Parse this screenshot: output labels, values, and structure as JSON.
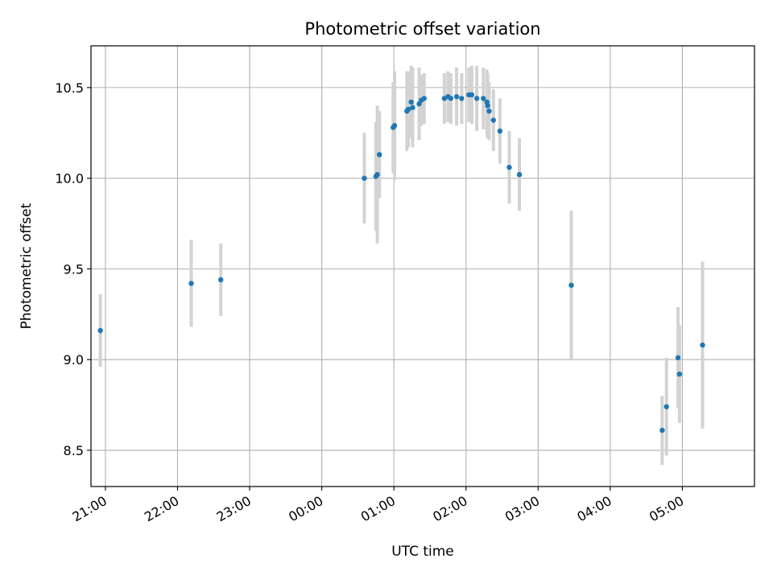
{
  "chart_data": {
    "type": "scatter",
    "title": "Photometric offset variation",
    "xlabel": "UTC time",
    "ylabel": "Photometric offset",
    "grid": true,
    "xlim": [
      -3.2,
      6.0
    ],
    "ylim": [
      8.3,
      10.73
    ],
    "x_units": "hours relative to 00:00 UTC",
    "xticks": [
      {
        "value": -3,
        "label": "21:00"
      },
      {
        "value": -2,
        "label": "22:00"
      },
      {
        "value": -1,
        "label": "23:00"
      },
      {
        "value": 0,
        "label": "00:00"
      },
      {
        "value": 1,
        "label": "01:00"
      },
      {
        "value": 2,
        "label": "02:00"
      },
      {
        "value": 3,
        "label": "03:00"
      },
      {
        "value": 4,
        "label": "04:00"
      },
      {
        "value": 5,
        "label": "05:00"
      }
    ],
    "yticks": [
      {
        "value": 8.5,
        "label": "8.5"
      },
      {
        "value": 9.0,
        "label": "9.0"
      },
      {
        "value": 9.5,
        "label": "9.5"
      },
      {
        "value": 10.0,
        "label": "10.0"
      },
      {
        "value": 10.5,
        "label": "10.5"
      }
    ],
    "series": [
      {
        "name": "offset",
        "color": "#1f77b4",
        "errorbar_color": "#d3d3d3",
        "points": [
          {
            "x": -3.07,
            "y": 9.16,
            "err": 0.2
          },
          {
            "x": -1.81,
            "y": 9.42,
            "err": 0.24
          },
          {
            "x": -1.4,
            "y": 9.44,
            "err": 0.2
          },
          {
            "x": 0.59,
            "y": 10.0,
            "err": 0.25
          },
          {
            "x": 0.75,
            "y": 10.01,
            "err": 0.3
          },
          {
            "x": 0.77,
            "y": 10.02,
            "err": 0.38
          },
          {
            "x": 0.8,
            "y": 10.13,
            "err": 0.24
          },
          {
            "x": 0.99,
            "y": 10.28,
            "err": 0.25
          },
          {
            "x": 1.01,
            "y": 10.29,
            "err": 0.3
          },
          {
            "x": 1.18,
            "y": 10.37,
            "err": 0.22
          },
          {
            "x": 1.2,
            "y": 10.38,
            "err": 0.21
          },
          {
            "x": 1.24,
            "y": 10.42,
            "err": 0.2
          },
          {
            "x": 1.26,
            "y": 10.39,
            "err": 0.22
          },
          {
            "x": 1.35,
            "y": 10.41,
            "err": 0.2
          },
          {
            "x": 1.38,
            "y": 10.43,
            "err": 0.14
          },
          {
            "x": 1.42,
            "y": 10.44,
            "err": 0.14
          },
          {
            "x": 1.7,
            "y": 10.44,
            "err": 0.14
          },
          {
            "x": 1.75,
            "y": 10.45,
            "err": 0.14
          },
          {
            "x": 1.79,
            "y": 10.44,
            "err": 0.14
          },
          {
            "x": 1.87,
            "y": 10.45,
            "err": 0.16
          },
          {
            "x": 1.94,
            "y": 10.44,
            "err": 0.14
          },
          {
            "x": 2.04,
            "y": 10.46,
            "err": 0.15
          },
          {
            "x": 2.08,
            "y": 10.46,
            "err": 0.16
          },
          {
            "x": 2.15,
            "y": 10.44,
            "err": 0.18
          },
          {
            "x": 2.24,
            "y": 10.44,
            "err": 0.17
          },
          {
            "x": 2.29,
            "y": 10.42,
            "err": 0.18
          },
          {
            "x": 2.3,
            "y": 10.4,
            "err": 0.18
          },
          {
            "x": 2.32,
            "y": 10.37,
            "err": 0.16
          },
          {
            "x": 2.38,
            "y": 10.32,
            "err": 0.17
          },
          {
            "x": 2.47,
            "y": 10.26,
            "err": 0.18
          },
          {
            "x": 2.6,
            "y": 10.06,
            "err": 0.2
          },
          {
            "x": 2.74,
            "y": 10.02,
            "err": 0.2
          },
          {
            "x": 3.46,
            "y": 9.41,
            "err": 0.41
          },
          {
            "x": 4.72,
            "y": 8.61,
            "err": 0.19
          },
          {
            "x": 4.78,
            "y": 8.74,
            "err": 0.27
          },
          {
            "x": 4.94,
            "y": 9.01,
            "err": 0.28
          },
          {
            "x": 4.96,
            "y": 8.92,
            "err": 0.27
          },
          {
            "x": 5.28,
            "y": 9.08,
            "err": 0.46
          }
        ]
      }
    ]
  }
}
